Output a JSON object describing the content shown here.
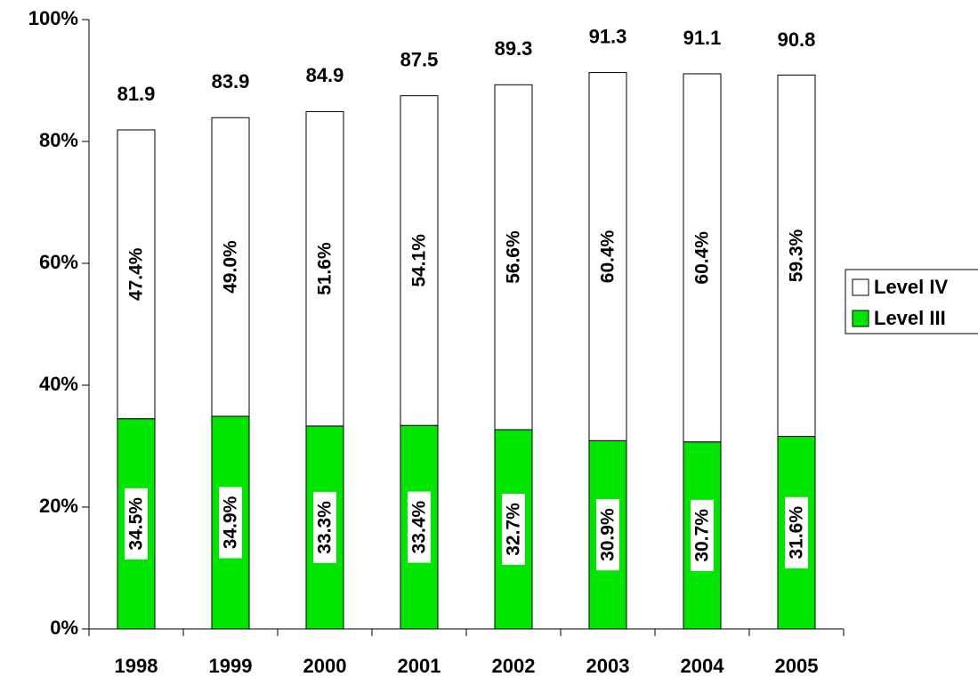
{
  "chart_data": {
    "type": "stacked-bar",
    "categories": [
      "1998",
      "1999",
      "2000",
      "2001",
      "2002",
      "2003",
      "2004",
      "2005"
    ],
    "series": [
      {
        "name": "Level III",
        "color": "#00e600",
        "values": [
          34.5,
          34.9,
          33.3,
          33.4,
          32.7,
          30.9,
          30.7,
          31.6
        ],
        "value_labels": [
          "34.5%",
          "34.9%",
          "33.3%",
          "33.4%",
          "32.7%",
          "30.9%",
          "30.7%",
          "31.6%"
        ]
      },
      {
        "name": "Level IV",
        "color": "#ffffff",
        "values": [
          47.4,
          49.0,
          51.6,
          54.1,
          56.6,
          60.4,
          60.4,
          59.3
        ],
        "value_labels": [
          "47.4%",
          "49.0%",
          "51.6%",
          "54.1%",
          "56.6%",
          "60.4%",
          "60.4%",
          "59.3%"
        ]
      }
    ],
    "totals": [
      81.9,
      83.9,
      84.9,
      87.5,
      89.3,
      91.3,
      91.1,
      90.8
    ],
    "ylim": [
      0,
      100
    ],
    "yticks": [
      {
        "value": 0,
        "label": "0%"
      },
      {
        "value": 20,
        "label": "20%"
      },
      {
        "value": 40,
        "label": "40%"
      },
      {
        "value": 60,
        "label": "60%"
      },
      {
        "value": 80,
        "label": "80%"
      },
      {
        "value": 100,
        "label": "100%"
      }
    ],
    "grid": false,
    "legend": "right"
  }
}
